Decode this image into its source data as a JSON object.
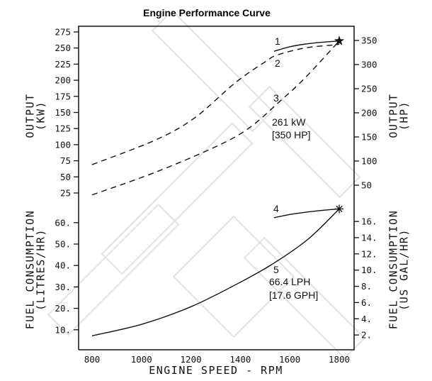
{
  "chart_data": {
    "type": "line",
    "title": "Engine Performance Curve",
    "xlabel": "ENGINE SPEED - RPM",
    "xlim": [
      745,
      1860
    ],
    "x_ticks": [
      "800",
      "1000",
      "1200",
      "1400",
      "1600",
      "1800"
    ],
    "panels": [
      {
        "ylabel": [
          "OUTPUT",
          "(KW)"
        ],
        "ylabel_right": [
          "OUTPUT",
          "(HP)"
        ],
        "y_ticks": [
          "25",
          "50",
          "75",
          "100",
          "125",
          "150",
          "175",
          "200",
          "225",
          "250",
          "275"
        ],
        "y_ticks_right": [
          "50",
          "100",
          "150",
          "200",
          "250",
          "300",
          "350"
        ],
        "series": [
          {
            "name": "1",
            "style": "solid",
            "x": [
              1536,
              1600,
              1660,
              1730,
              1800
            ],
            "y": [
              245,
              252,
              256,
              259,
              261
            ]
          },
          {
            "name": "2",
            "style": "dashed",
            "x": [
              800,
              1055,
              1213,
              1379,
              1502,
              1548,
              1660,
              1783,
              1800
            ],
            "y": [
              69,
              107,
              141,
              196,
              229,
              239,
              250,
              255,
              256
            ]
          },
          {
            "name": "3",
            "style": "dashed",
            "x": [
              800,
              1055,
              1301,
              1436,
              1559,
              1660,
              1800
            ],
            "y": [
              22,
              57,
              97,
              126,
              167,
              203,
              261
            ]
          }
        ],
        "marker": {
          "symbol": "star",
          "x": 1800,
          "y": 261
        },
        "annotation": [
          "261 kW",
          "[350 HP]"
        ]
      },
      {
        "ylabel": [
          "FUEL CONSUMPTION",
          "(LITRES/HR)"
        ],
        "ylabel_right": [
          "FUEL CONSUMPTION",
          "(US GAL/HR)"
        ],
        "y_ticks": [
          "10.",
          "20.",
          "30.",
          "40.",
          "50.",
          "60."
        ],
        "y_ticks_right": [
          "2.",
          "4.",
          "6.",
          "8.",
          "10.",
          "12.",
          "14.",
          "16."
        ],
        "series": [
          {
            "name": "4",
            "style": "solid",
            "x": [
              1536,
              1600,
              1660,
              1730,
              1800
            ],
            "y": [
              62.3,
              63.8,
              64.8,
              65.7,
              66.4
            ]
          },
          {
            "name": "5",
            "style": "solid",
            "x": [
              800,
              1005,
              1205,
              1405,
              1540,
              1675,
              1800
            ],
            "y": [
              7.2,
              12.7,
              21,
              32.5,
              41.4,
              52.4,
              66.4
            ]
          }
        ],
        "marker": {
          "symbol": "asterisk",
          "x": 1800,
          "y": 66.4
        },
        "annotation": [
          "66.4 LPH",
          "[17.6 GPH]"
        ]
      }
    ],
    "grid": false,
    "legend": "none",
    "line_color": "#111111",
    "watermark_color": "#e2e2e2"
  }
}
